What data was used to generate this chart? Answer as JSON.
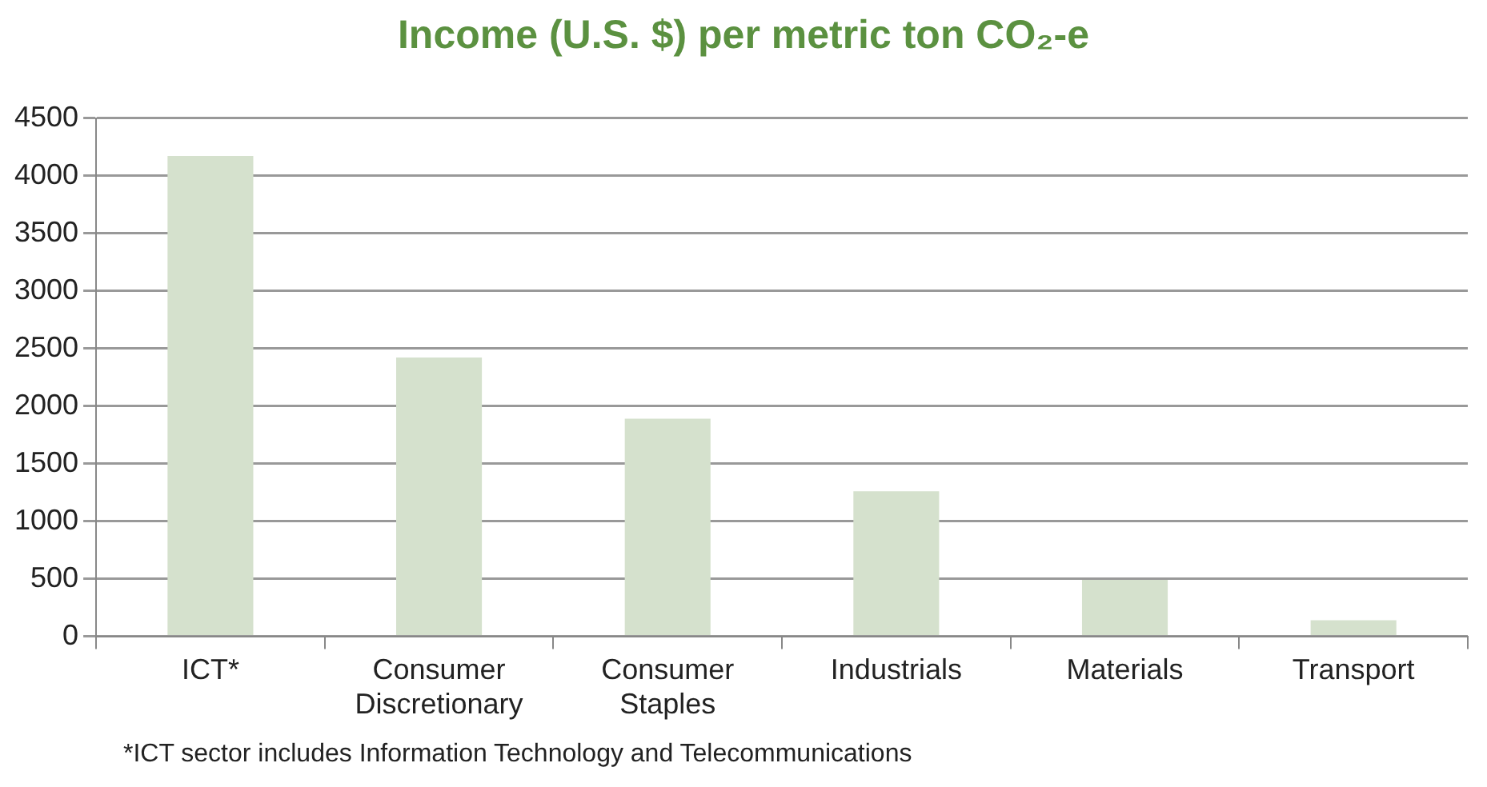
{
  "chart_data": {
    "type": "bar",
    "title": "Income (U.S. $) per metric ton CO₂-e",
    "categories": [
      "ICT*",
      "Consumer Discretionary",
      "Consumer Staples",
      "Industrials",
      "Materials",
      "Transport"
    ],
    "values": [
      4170,
      2420,
      1890,
      1260,
      490,
      140
    ],
    "color": "#d5e1cd",
    "ylim": [
      0,
      4500
    ],
    "yticks": [
      0,
      500,
      1000,
      1500,
      2000,
      2500,
      3000,
      3500,
      4000,
      4500
    ],
    "grid": "y",
    "legend": false,
    "annotations": [
      "*ICT sector includes Information Technology and Telecommunications"
    ]
  }
}
